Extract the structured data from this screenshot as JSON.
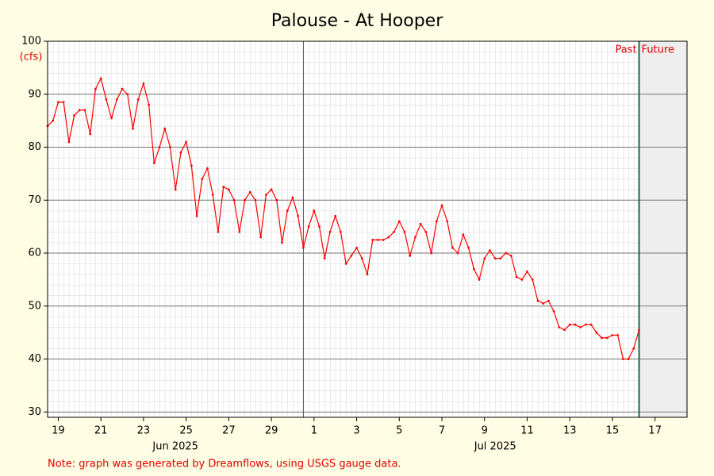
{
  "chart_data": {
    "type": "line",
    "title": "Palouse - At Hooper",
    "ylabel": "(cfs)",
    "note": "Note: graph was generated by Dreamflows, using USGS gauge data.",
    "color": "#ff0000",
    "xlim": [
      "2025-06-19T00:00",
      "2025-07-19T00:00"
    ],
    "ylim": [
      29,
      100
    ],
    "yticks": [
      30,
      40,
      50,
      60,
      70,
      80,
      90,
      100
    ],
    "xticks": [
      {
        "value": "2025-06-19T12:00",
        "label": "19"
      },
      {
        "value": "2025-06-21T12:00",
        "label": "21"
      },
      {
        "value": "2025-06-23T12:00",
        "label": "23"
      },
      {
        "value": "2025-06-25T12:00",
        "label": "25"
      },
      {
        "value": "2025-06-27T12:00",
        "label": "27"
      },
      {
        "value": "2025-06-29T12:00",
        "label": "29"
      },
      {
        "value": "2025-07-01T12:00",
        "label": "1"
      },
      {
        "value": "2025-07-03T12:00",
        "label": "3"
      },
      {
        "value": "2025-07-05T12:00",
        "label": "5"
      },
      {
        "value": "2025-07-07T12:00",
        "label": "7"
      },
      {
        "value": "2025-07-09T12:00",
        "label": "9"
      },
      {
        "value": "2025-07-11T12:00",
        "label": "11"
      },
      {
        "value": "2025-07-13T12:00",
        "label": "13"
      },
      {
        "value": "2025-07-15T12:00",
        "label": "15"
      },
      {
        "value": "2025-07-17T12:00",
        "label": "17"
      }
    ],
    "month_labels": [
      {
        "value": "2025-06-25T00:00",
        "label": "Jun 2025"
      },
      {
        "value": "2025-07-10T00:00",
        "label": "Jul 2025"
      }
    ],
    "month_lines": [
      "2025-07-01T00:00"
    ],
    "divider": {
      "value": "2025-07-16T18:00",
      "left_label": "Past",
      "right_label": "Future"
    },
    "grid": true,
    "x": [
      "2025-06-19T00:00",
      "2025-06-19T06:00",
      "2025-06-19T12:00",
      "2025-06-19T18:00",
      "2025-06-20T00:00",
      "2025-06-20T06:00",
      "2025-06-20T12:00",
      "2025-06-20T18:00",
      "2025-06-21T00:00",
      "2025-06-21T06:00",
      "2025-06-21T12:00",
      "2025-06-21T18:00",
      "2025-06-22T00:00",
      "2025-06-22T06:00",
      "2025-06-22T12:00",
      "2025-06-22T18:00",
      "2025-06-23T00:00",
      "2025-06-23T06:00",
      "2025-06-23T12:00",
      "2025-06-23T18:00",
      "2025-06-24T00:00",
      "2025-06-24T06:00",
      "2025-06-24T12:00",
      "2025-06-24T18:00",
      "2025-06-25T00:00",
      "2025-06-25T06:00",
      "2025-06-25T12:00",
      "2025-06-25T18:00",
      "2025-06-26T00:00",
      "2025-06-26T06:00",
      "2025-06-26T12:00",
      "2025-06-26T18:00",
      "2025-06-27T00:00",
      "2025-06-27T06:00",
      "2025-06-27T12:00",
      "2025-06-27T18:00",
      "2025-06-28T00:00",
      "2025-06-28T06:00",
      "2025-06-28T12:00",
      "2025-06-28T18:00",
      "2025-06-29T00:00",
      "2025-06-29T06:00",
      "2025-06-29T12:00",
      "2025-06-29T18:00",
      "2025-06-30T00:00",
      "2025-06-30T06:00",
      "2025-06-30T12:00",
      "2025-06-30T18:00",
      "2025-07-01T00:00",
      "2025-07-01T06:00",
      "2025-07-01T12:00",
      "2025-07-01T18:00",
      "2025-07-02T00:00",
      "2025-07-02T06:00",
      "2025-07-02T12:00",
      "2025-07-02T18:00",
      "2025-07-03T00:00",
      "2025-07-03T06:00",
      "2025-07-03T12:00",
      "2025-07-03T18:00",
      "2025-07-04T00:00",
      "2025-07-04T06:00",
      "2025-07-04T12:00",
      "2025-07-04T18:00",
      "2025-07-05T00:00",
      "2025-07-05T06:00",
      "2025-07-05T12:00",
      "2025-07-05T18:00",
      "2025-07-06T00:00",
      "2025-07-06T06:00",
      "2025-07-06T12:00",
      "2025-07-06T18:00",
      "2025-07-07T00:00",
      "2025-07-07T06:00",
      "2025-07-07T12:00",
      "2025-07-07T18:00",
      "2025-07-08T00:00",
      "2025-07-08T06:00",
      "2025-07-08T12:00",
      "2025-07-08T18:00",
      "2025-07-09T00:00",
      "2025-07-09T06:00",
      "2025-07-09T12:00",
      "2025-07-09T18:00",
      "2025-07-10T00:00",
      "2025-07-10T06:00",
      "2025-07-10T12:00",
      "2025-07-10T18:00",
      "2025-07-11T00:00",
      "2025-07-11T06:00",
      "2025-07-11T12:00",
      "2025-07-11T18:00",
      "2025-07-12T00:00",
      "2025-07-12T06:00",
      "2025-07-12T12:00",
      "2025-07-12T18:00",
      "2025-07-13T00:00",
      "2025-07-13T06:00",
      "2025-07-13T12:00",
      "2025-07-13T18:00",
      "2025-07-14T00:00",
      "2025-07-14T06:00",
      "2025-07-14T12:00",
      "2025-07-14T18:00",
      "2025-07-15T00:00",
      "2025-07-15T06:00",
      "2025-07-15T12:00",
      "2025-07-15T18:00",
      "2025-07-16T00:00",
      "2025-07-16T06:00",
      "2025-07-16T12:00",
      "2025-07-16T18:00"
    ],
    "values": [
      84,
      85,
      88.5,
      88.5,
      81,
      86,
      87,
      87,
      82.5,
      91,
      93,
      89,
      85.5,
      89,
      91,
      90,
      83.5,
      89,
      92,
      88,
      77,
      80,
      83.5,
      80,
      72,
      79,
      81,
      76.5,
      67,
      74,
      76,
      71,
      64,
      72.5,
      72,
      70,
      64,
      70,
      71.5,
      70,
      63,
      71,
      72,
      70,
      62,
      68,
      70.5,
      67,
      61,
      65,
      68,
      65,
      59,
      64,
      67,
      64,
      58,
      59.5,
      61,
      59,
      56,
      62.5,
      62.5,
      62.5,
      63,
      64,
      66,
      64,
      59.5,
      63,
      65.5,
      64,
      60,
      66,
      69,
      66,
      61,
      60,
      63.5,
      61,
      57,
      55,
      59,
      60.5,
      59,
      59,
      60,
      59.5,
      55.5,
      55,
      56.5,
      55,
      51,
      50.5,
      51,
      49,
      46,
      45.5,
      46.5,
      46.5,
      46,
      46.5,
      46.5,
      45,
      44,
      44,
      44.5,
      44.5,
      40,
      40,
      42,
      45.5
    ]
  }
}
